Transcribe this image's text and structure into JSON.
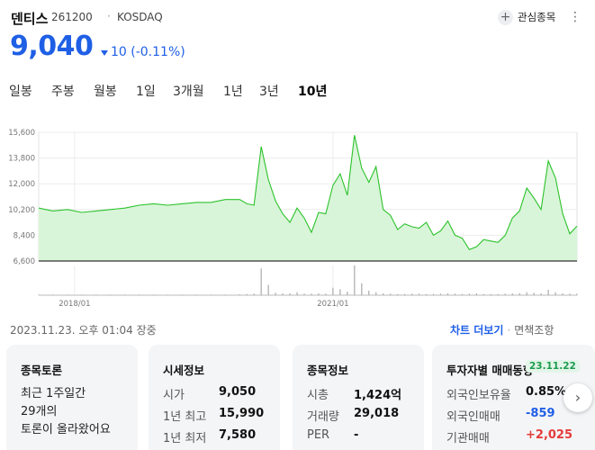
{
  "header": {
    "name": "덴티스",
    "code": "261200",
    "separator": "·",
    "market": "KOSDAQ",
    "watch_label": "관심종목",
    "more_icon": "vertical-dots-icon"
  },
  "price": {
    "current": "9,040",
    "change": "10 (-0.11%)",
    "direction": "down",
    "color": "#1f5fe6"
  },
  "tabs": [
    {
      "label": "일봉",
      "active": false
    },
    {
      "label": "주봉",
      "active": false
    },
    {
      "label": "월봉",
      "active": false
    },
    {
      "label": "1일",
      "active": false
    },
    {
      "label": "3개월",
      "active": false
    },
    {
      "label": "1년",
      "active": false
    },
    {
      "label": "3년",
      "active": false
    },
    {
      "label": "10년",
      "active": true
    }
  ],
  "chart_data": {
    "type": "area",
    "x_tick_labels": [
      "2018/01",
      "2021/01"
    ],
    "y_tick_labels": [
      "15,600",
      "13,800",
      "12,000",
      "10,200",
      "8,400",
      "6,600"
    ],
    "y_ticks": [
      15600,
      13800,
      12000,
      10200,
      8400,
      6600
    ],
    "ylim": [
      6600,
      15600
    ],
    "x_range": [
      "2017-08",
      "2023-11"
    ],
    "line_color": "#2bc22b",
    "fill_color": "#d9f5d9",
    "grid": true,
    "x": [
      "2017-08",
      "2017-10",
      "2017-12",
      "2018-02",
      "2018-04",
      "2018-06",
      "2018-08",
      "2018-10",
      "2018-12",
      "2019-02",
      "2019-04",
      "2019-06",
      "2019-08",
      "2019-10",
      "2019-12",
      "2020-01",
      "2020-02",
      "2020-03",
      "2020-04",
      "2020-05",
      "2020-06",
      "2020-07",
      "2020-08",
      "2020-09",
      "2020-10",
      "2020-11",
      "2020-12",
      "2021-01",
      "2021-02",
      "2021-03",
      "2021-04",
      "2021-05",
      "2021-06",
      "2021-07",
      "2021-08",
      "2021-09",
      "2021-10",
      "2021-11",
      "2021-12",
      "2022-01",
      "2022-02",
      "2022-03",
      "2022-04",
      "2022-05",
      "2022-06",
      "2022-07",
      "2022-08",
      "2022-09",
      "2022-10",
      "2022-11",
      "2022-12",
      "2023-01",
      "2023-02",
      "2023-03",
      "2023-04",
      "2023-05",
      "2023-06",
      "2023-07",
      "2023-08",
      "2023-09",
      "2023-10",
      "2023-11"
    ],
    "values": [
      10300,
      10100,
      10200,
      10000,
      10100,
      10200,
      10300,
      10500,
      10600,
      10500,
      10600,
      10700,
      10700,
      10900,
      10900,
      10600,
      10500,
      14600,
      12300,
      10800,
      9900,
      9300,
      10300,
      9600,
      8600,
      10000,
      9900,
      11900,
      12700,
      11200,
      15400,
      13100,
      12100,
      13200,
      10200,
      9800,
      8800,
      9200,
      9000,
      8900,
      9300,
      8400,
      8700,
      9400,
      8400,
      8200,
      7400,
      7600,
      8100,
      8000,
      7900,
      8400,
      9600,
      10100,
      11700,
      11000,
      10200,
      13600,
      12400,
      9900,
      8500,
      9040
    ],
    "volume": [
      0.02,
      0.02,
      0.02,
      0.02,
      0.02,
      0.02,
      0.02,
      0.02,
      0.02,
      0.02,
      0.02,
      0.02,
      0.02,
      0.02,
      0.03,
      0.04,
      0.05,
      0.9,
      0.35,
      0.08,
      0.06,
      0.06,
      0.1,
      0.05,
      0.05,
      0.06,
      0.05,
      0.25,
      0.2,
      0.12,
      1.0,
      0.4,
      0.15,
      0.1,
      0.06,
      0.05,
      0.04,
      0.04,
      0.05,
      0.05,
      0.04,
      0.04,
      0.05,
      0.06,
      0.05,
      0.04,
      0.05,
      0.06,
      0.04,
      0.04,
      0.04,
      0.05,
      0.06,
      0.07,
      0.1,
      0.08,
      0.06,
      0.18,
      0.1,
      0.06,
      0.05,
      0.05
    ]
  },
  "footer": {
    "timestamp": "2023.11.23. 오후 01:04 장중",
    "chart_more": "차트 더보기",
    "separator": "·",
    "disclaimer": "면책조항"
  },
  "cards": {
    "discussion": {
      "title": "종목토론",
      "line1": "최근 1주일간",
      "line2": "29개의",
      "line3": "토론이 올라왔어요"
    },
    "market_info": {
      "title": "시세정보",
      "rows": [
        {
          "key": "시가",
          "value": "9,050"
        },
        {
          "key": "1년 최고",
          "value": "15,990"
        },
        {
          "key": "1년 최저",
          "value": "7,580"
        }
      ]
    },
    "stock_info": {
      "title": "종목정보",
      "rows": [
        {
          "key": "시총",
          "value": "1,424억"
        },
        {
          "key": "거래량",
          "value": "29,018"
        },
        {
          "key": "PER",
          "value": "-"
        }
      ]
    },
    "investor_trend": {
      "title": "투자자별 매매동향",
      "badge": "23.11.22",
      "rows": [
        {
          "key": "외국인보유율",
          "value": "0.85%",
          "tone": "normal"
        },
        {
          "key": "외국인매매",
          "value": "-859",
          "tone": "blue"
        },
        {
          "key": "기관매매",
          "value": "+2,025",
          "tone": "red"
        }
      ]
    }
  },
  "next_icon": "chevron-right-icon"
}
